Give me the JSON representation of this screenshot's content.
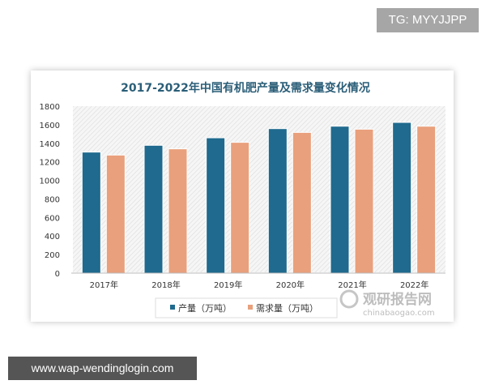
{
  "watermark_top": "TG: MYYJJPP",
  "watermark_bottom": "www.wap-wendinglogin.com",
  "logo": {
    "cn": "观研报告网",
    "en": "chinabaogao.com"
  },
  "chart_data": {
    "type": "bar",
    "title": "2017-2022年中国有机肥产量及需求量变化情况",
    "categories": [
      "2017年",
      "2018年",
      "2019年",
      "2020年",
      "2021年",
      "2022年"
    ],
    "series": [
      {
        "name": "产量（万吨）",
        "color": "#1f6a8e",
        "values": [
          1305,
          1378,
          1459,
          1558,
          1584,
          1625
        ]
      },
      {
        "name": "需求量（万吨）",
        "color": "#e9a07c",
        "values": [
          1273,
          1340,
          1410,
          1517,
          1552,
          1584
        ]
      }
    ],
    "ylim": [
      0,
      1800
    ],
    "yticks": [
      "0",
      "200",
      "400",
      "600",
      "800",
      "1000",
      "1200",
      "1400",
      "1600",
      "1800"
    ],
    "grid": false,
    "legend": "bottom"
  }
}
